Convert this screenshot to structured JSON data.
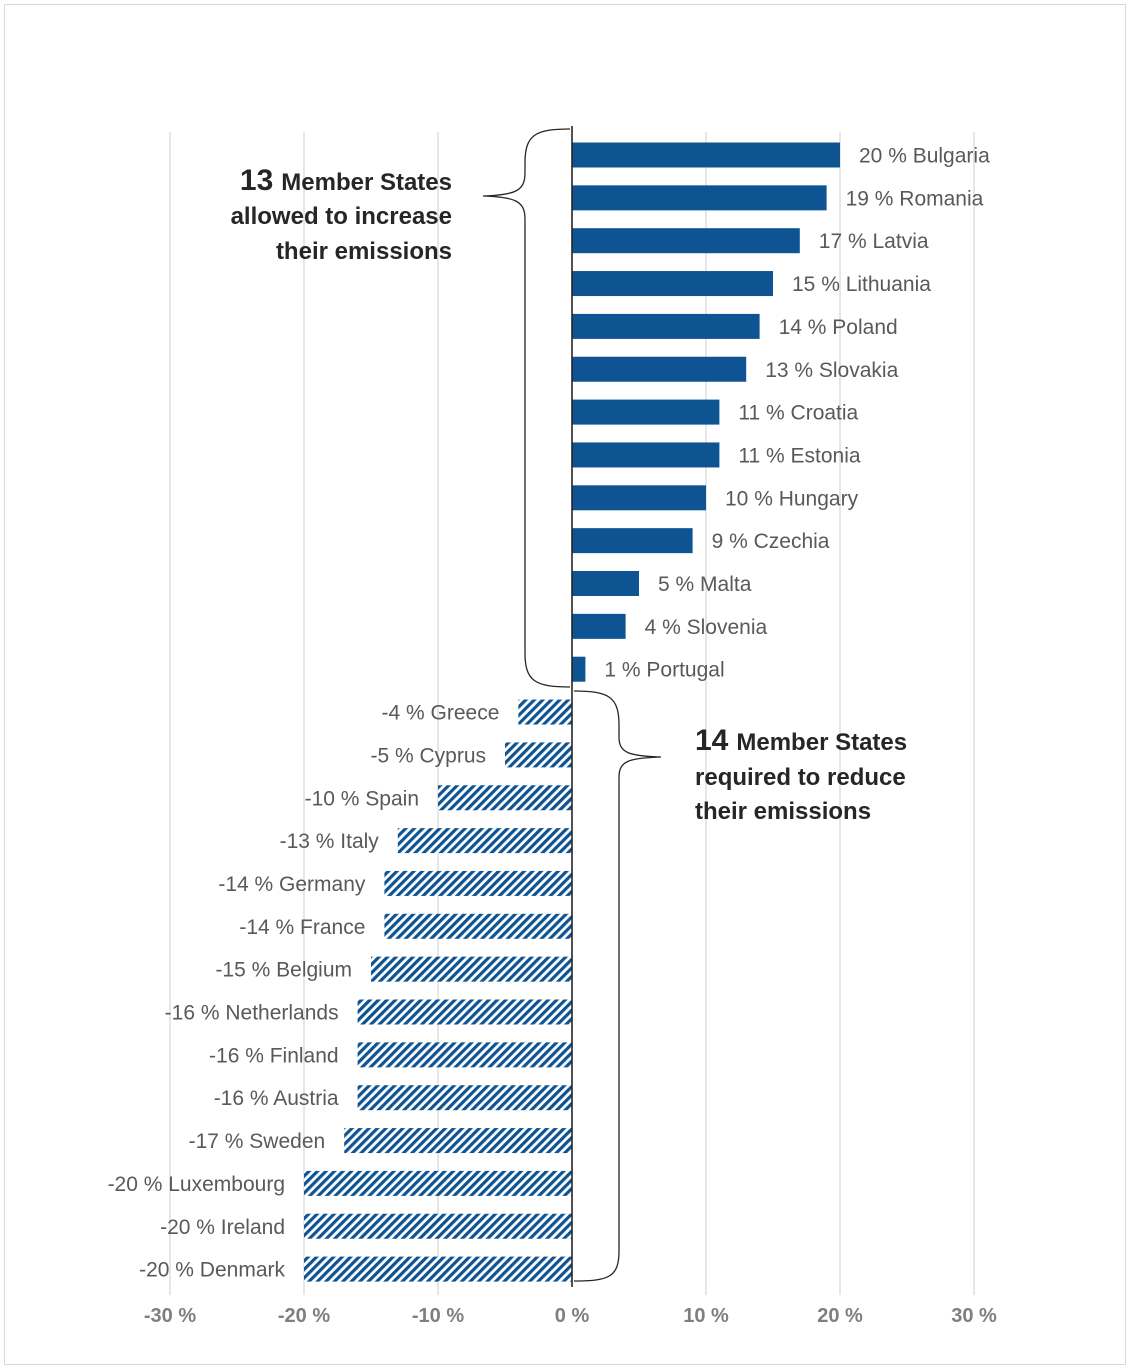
{
  "chart_data": {
    "type": "bar",
    "orientation": "horizontal",
    "xlim": [
      -30,
      30
    ],
    "x_ticks": [
      -30,
      -20,
      -10,
      0,
      10,
      20,
      30
    ],
    "tick_labels": [
      "-30 %",
      "-20 %",
      "-10 %",
      "0 %",
      "10 %",
      "20 %",
      "30 %"
    ],
    "grid": "vertical",
    "colors": {
      "bar": "#0f5492",
      "grid": "#d9d9d9",
      "label": "#595959",
      "tick": "#7f7f7f"
    },
    "series": [
      {
        "fill": "solid",
        "bars": [
          {
            "country": "Bulgaria",
            "value": 20,
            "label": "20 % Bulgaria"
          },
          {
            "country": "Romania",
            "value": 19,
            "label": "19 % Romania"
          },
          {
            "country": "Latvia",
            "value": 17,
            "label": "17 % Latvia"
          },
          {
            "country": "Lithuania",
            "value": 15,
            "label": "15 % Lithuania"
          },
          {
            "country": "Poland",
            "value": 14,
            "label": "14 % Poland"
          },
          {
            "country": "Slovakia",
            "value": 13,
            "label": "13 % Slovakia"
          },
          {
            "country": "Croatia",
            "value": 11,
            "label": "11 % Croatia"
          },
          {
            "country": "Estonia",
            "value": 11,
            "label": "11 % Estonia"
          },
          {
            "country": "Hungary",
            "value": 10,
            "label": "10 % Hungary"
          },
          {
            "country": "Czechia",
            "value": 9,
            "label": "9 % Czechia"
          },
          {
            "country": "Malta",
            "value": 5,
            "label": "5 % Malta"
          },
          {
            "country": "Slovenia",
            "value": 4,
            "label": "4 % Slovenia"
          },
          {
            "country": "Portugal",
            "value": 1,
            "label": "1 % Portugal"
          }
        ]
      },
      {
        "fill": "hatched",
        "bars": [
          {
            "country": "Greece",
            "value": -4,
            "label": "-4 % Greece"
          },
          {
            "country": "Cyprus",
            "value": -5,
            "label": "-5 % Cyprus"
          },
          {
            "country": "Spain",
            "value": -10,
            "label": "-10 % Spain"
          },
          {
            "country": "Italy",
            "value": -13,
            "label": "-13 % Italy"
          },
          {
            "country": "Germany",
            "value": -14,
            "label": "-14 % Germany"
          },
          {
            "country": "France",
            "value": -14,
            "label": "-14 % France"
          },
          {
            "country": "Belgium",
            "value": -15,
            "label": "-15 % Belgium"
          },
          {
            "country": "Netherlands",
            "value": -16,
            "label": "-16 % Netherlands"
          },
          {
            "country": "Finland",
            "value": -16,
            "label": "-16 % Finland"
          },
          {
            "country": "Austria",
            "value": -16,
            "label": "-16 % Austria"
          },
          {
            "country": "Sweden",
            "value": -17,
            "label": "-17 % Sweden"
          },
          {
            "country": "Luxembourg",
            "value": -20,
            "label": "-20 % Luxembourg"
          },
          {
            "country": "Ireland",
            "value": -20,
            "label": "-20 % Ireland"
          },
          {
            "country": "Denmark",
            "value": -20,
            "label": "-20 % Denmark"
          }
        ]
      }
    ],
    "annotations": [
      {
        "number": "13",
        "lines": [
          "Member States",
          "allowed to increase",
          "their emissions"
        ]
      },
      {
        "number": "14",
        "lines": [
          "Member States",
          "required to reduce",
          "their emissions"
        ]
      }
    ]
  }
}
